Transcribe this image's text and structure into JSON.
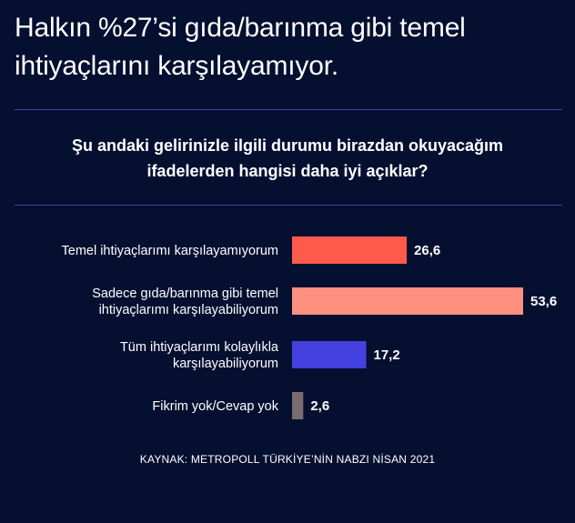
{
  "headline": "Halkın %27’si gıda/barınma gibi temel ihtiyaçlarını karşılayamıyor.",
  "question": "Şu andaki gelirinizle ilgili durumu birazdan okuyacağım ifadelerden hangisi daha iyi açıklar?",
  "source": "KAYNAK: METROPOLL TÜRKİYE’NİN NABZI NİSAN 2021",
  "chart_data": {
    "type": "bar",
    "orientation": "horizontal",
    "categories": [
      [
        "Temel ihtiyaçlarımı karşılayamıyorum"
      ],
      [
        "Sadece gıda/barınma gibi temel",
        "ihtiyaçlarımı karşılayabiliyorum"
      ],
      [
        "Tüm ihtiyaçlarımı kolaylıkla",
        "karşılayabiliyorum"
      ],
      [
        "Fikrim yok/Cevap yok"
      ]
    ],
    "values": [
      26.6,
      53.6,
      17.2,
      2.6
    ],
    "value_labels": [
      "26,6",
      "53,6",
      "17,2",
      "2,6"
    ],
    "colors": [
      "#ff5a4b",
      "#ff9080",
      "#4540e0",
      "#7a6c6c"
    ],
    "xlim": [
      0,
      53.6
    ],
    "title": "",
    "xlabel": "",
    "ylabel": "",
    "grid": false,
    "legend": "none"
  }
}
